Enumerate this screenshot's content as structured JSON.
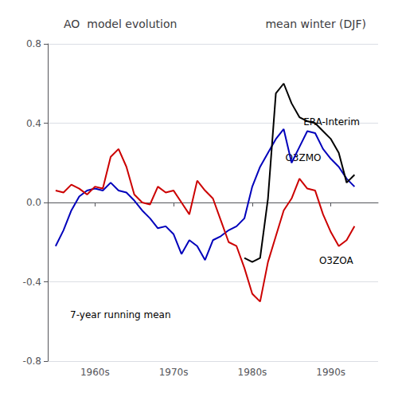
{
  "chart_data": {
    "type": "line",
    "title": "AO  model evolution",
    "subtitle": "mean winter (DJF)",
    "annotations": [
      "7-year running mean"
    ],
    "xlim": [
      1954,
      1996
    ],
    "xticks": [
      {
        "value": 1960,
        "label": "1960s"
      },
      {
        "value": 1970,
        "label": "1970s"
      },
      {
        "value": 1980,
        "label": "1980s"
      },
      {
        "value": 1990,
        "label": "1990s"
      }
    ],
    "ylim": [
      -0.8,
      0.8
    ],
    "yticks": [
      -0.8,
      -0.4,
      {
        "value": 0.0,
        "label": "0.0"
      },
      0.4,
      0.8
    ],
    "grid": true,
    "series": [
      {
        "name": "O3ZMO",
        "color": "#0000bb",
        "x": [
          1955,
          1956,
          1957,
          1958,
          1959,
          1960,
          1961,
          1962,
          1963,
          1964,
          1965,
          1966,
          1967,
          1968,
          1969,
          1970,
          1971,
          1972,
          1973,
          1974,
          1975,
          1976,
          1977,
          1978,
          1979,
          1980,
          1981,
          1982,
          1983,
          1984,
          1985,
          1986,
          1987,
          1988,
          1989,
          1990,
          1991,
          1992,
          1993
        ],
        "values": [
          -0.22,
          -0.14,
          -0.04,
          0.03,
          0.06,
          0.07,
          0.06,
          0.1,
          0.06,
          0.05,
          0.01,
          -0.04,
          -0.08,
          -0.13,
          -0.12,
          -0.16,
          -0.26,
          -0.19,
          -0.22,
          -0.29,
          -0.19,
          -0.17,
          -0.14,
          -0.12,
          -0.08,
          0.08,
          0.18,
          0.25,
          0.32,
          0.37,
          0.2,
          0.28,
          0.36,
          0.35,
          0.27,
          0.22,
          0.18,
          0.12,
          0.08
        ]
      },
      {
        "name": "O3ZOA",
        "color": "#cc0000",
        "x": [
          1955,
          1956,
          1957,
          1958,
          1959,
          1960,
          1961,
          1962,
          1963,
          1964,
          1965,
          1966,
          1967,
          1968,
          1969,
          1970,
          1971,
          1972,
          1973,
          1974,
          1975,
          1976,
          1977,
          1978,
          1979,
          1980,
          1981,
          1982,
          1983,
          1984,
          1985,
          1986,
          1987,
          1988,
          1989,
          1990,
          1991,
          1992,
          1993
        ],
        "values": [
          0.06,
          0.05,
          0.09,
          0.07,
          0.04,
          0.08,
          0.07,
          0.23,
          0.27,
          0.18,
          0.04,
          0.0,
          -0.01,
          0.08,
          0.05,
          0.06,
          0.0,
          -0.06,
          0.11,
          0.06,
          0.02,
          -0.09,
          -0.2,
          -0.22,
          -0.33,
          -0.46,
          -0.5,
          -0.3,
          -0.17,
          -0.04,
          0.02,
          0.12,
          0.07,
          0.06,
          -0.06,
          -0.15,
          -0.22,
          -0.19,
          -0.12
        ]
      },
      {
        "name": "ERA-Interim",
        "color": "#000000",
        "x": [
          1979,
          1980,
          1981,
          1982,
          1983,
          1984,
          1985,
          1986,
          1987,
          1988,
          1989,
          1990,
          1991,
          1992,
          1993
        ],
        "values": [
          -0.28,
          -0.3,
          -0.28,
          0.02,
          0.55,
          0.6,
          0.5,
          0.43,
          0.41,
          0.4,
          0.36,
          0.32,
          0.25,
          0.1,
          0.14
        ]
      }
    ]
  }
}
